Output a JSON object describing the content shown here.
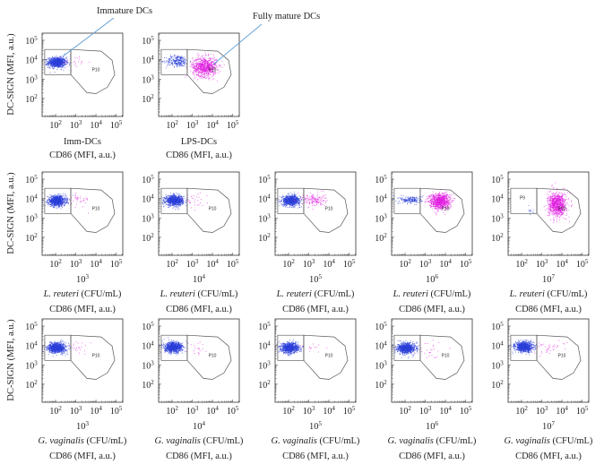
{
  "chart_data": {
    "type": "scatter",
    "scale": "log10",
    "ylabel": "DC-SIGN (MFI, a.u.)",
    "xlabel": "CD86 (MFI, a.u.)",
    "tick_base": "10",
    "x_tick_exponents": [
      "2",
      "3",
      "4",
      "5"
    ],
    "y_tick_exponents": [
      "2",
      "3",
      "4",
      "5"
    ],
    "xlim_log10": [
      1.33,
      5.33
    ],
    "ylim_log10": [
      1.07,
      5.37
    ],
    "colors": {
      "immature": "#2b3fd8",
      "mature": "#e01fe0",
      "gate": "#555555",
      "annotation": "#5b9bd5"
    },
    "gates": {
      "left": [
        [
          1.46,
          4.53
        ],
        [
          2.75,
          4.53
        ],
        [
          2.75,
          3.23
        ],
        [
          1.46,
          3.23
        ]
      ],
      "right": [
        [
          2.75,
          4.53
        ],
        [
          4.26,
          4.44
        ],
        [
          4.8,
          3.97
        ],
        [
          4.93,
          3.23
        ],
        [
          4.57,
          2.58
        ],
        [
          4.0,
          2.25
        ],
        [
          3.55,
          2.3
        ],
        [
          2.75,
          3.23
        ]
      ],
      "right_label": "P10",
      "right_label_pos": [
        3.8,
        3.4
      ],
      "left_label_pos": [
        1.9,
        3.95
      ]
    },
    "annotations": [
      {
        "text": "Immature DCs",
        "panel": 0
      },
      {
        "text": "Fully mature DCs",
        "panel": 1
      }
    ],
    "panels": [
      {
        "condition": "Imm-DCs",
        "pops": [
          {
            "c": "immature",
            "x": 2.05,
            "y": 3.88,
            "sx": 0.22,
            "sy": 0.13,
            "n": 900
          },
          {
            "c": "mature",
            "x": 3.0,
            "y": 3.9,
            "sx": 0.35,
            "sy": 0.2,
            "n": 25
          }
        ]
      },
      {
        "condition": "LPS-DCs",
        "pops": [
          {
            "c": "immature",
            "x": 2.25,
            "y": 3.95,
            "sx": 0.28,
            "sy": 0.15,
            "n": 250
          },
          {
            "c": "mature",
            "x": 3.6,
            "y": 3.65,
            "sx": 0.3,
            "sy": 0.25,
            "n": 800
          }
        ]
      },
      {
        "species": "L. reuteri",
        "units": "(CFU/mL)",
        "conc_exp": "3",
        "pops": [
          {
            "c": "immature",
            "x": 2.05,
            "y": 3.9,
            "sx": 0.22,
            "sy": 0.13,
            "n": 900
          },
          {
            "c": "mature",
            "x": 3.1,
            "y": 3.95,
            "sx": 0.3,
            "sy": 0.2,
            "n": 40
          }
        ]
      },
      {
        "species": "L. reuteri",
        "units": "(CFU/mL)",
        "conc_exp": "4",
        "pops": [
          {
            "c": "immature",
            "x": 2.1,
            "y": 3.92,
            "sx": 0.22,
            "sy": 0.13,
            "n": 900
          },
          {
            "c": "mature",
            "x": 3.1,
            "y": 3.9,
            "sx": 0.3,
            "sy": 0.2,
            "n": 30
          }
        ]
      },
      {
        "species": "L. reuteri",
        "units": "(CFU/mL)",
        "conc_exp": "5",
        "pops": [
          {
            "c": "immature",
            "x": 2.1,
            "y": 3.92,
            "sx": 0.22,
            "sy": 0.13,
            "n": 800
          },
          {
            "c": "mature",
            "x": 3.2,
            "y": 3.95,
            "sx": 0.3,
            "sy": 0.17,
            "n": 150
          }
        ]
      },
      {
        "species": "L. reuteri",
        "units": "(CFU/mL)",
        "conc_exp": "6",
        "pops": [
          {
            "c": "immature",
            "x": 2.3,
            "y": 3.95,
            "sx": 0.28,
            "sy": 0.1,
            "n": 180
          },
          {
            "c": "mature",
            "x": 3.7,
            "y": 3.88,
            "sx": 0.25,
            "sy": 0.2,
            "n": 900
          }
        ]
      },
      {
        "species": "L. reuteri",
        "units": "(CFU/mL)",
        "conc_exp": "7",
        "left_label": "P9",
        "pops": [
          {
            "c": "immature",
            "x": 2.5,
            "y": 3.4,
            "sx": 0.12,
            "sy": 0.1,
            "n": 12
          },
          {
            "c": "mature",
            "x": 3.75,
            "y": 3.7,
            "sx": 0.22,
            "sy": 0.3,
            "n": 900
          }
        ]
      },
      {
        "species": "G. vaginalis",
        "units": "(CFU/mL)",
        "conc_exp": "3",
        "pops": [
          {
            "c": "immature",
            "x": 2.05,
            "y": 3.9,
            "sx": 0.22,
            "sy": 0.13,
            "n": 900
          },
          {
            "c": "mature",
            "x": 3.1,
            "y": 3.9,
            "sx": 0.3,
            "sy": 0.2,
            "n": 20
          }
        ]
      },
      {
        "species": "G. vaginalis",
        "units": "(CFU/mL)",
        "conc_exp": "4",
        "pops": [
          {
            "c": "immature",
            "x": 2.05,
            "y": 3.92,
            "sx": 0.22,
            "sy": 0.13,
            "n": 900
          },
          {
            "c": "mature",
            "x": 3.1,
            "y": 3.9,
            "sx": 0.3,
            "sy": 0.2,
            "n": 20
          }
        ]
      },
      {
        "species": "G. vaginalis",
        "units": "(CFU/mL)",
        "conc_exp": "5",
        "pops": [
          {
            "c": "immature",
            "x": 2.05,
            "y": 3.9,
            "sx": 0.22,
            "sy": 0.13,
            "n": 900
          },
          {
            "c": "mature",
            "x": 3.1,
            "y": 3.9,
            "sx": 0.3,
            "sy": 0.2,
            "n": 15
          }
        ]
      },
      {
        "species": "G. vaginalis",
        "units": "(CFU/mL)",
        "conc_exp": "6",
        "pops": [
          {
            "c": "immature",
            "x": 2.05,
            "y": 3.88,
            "sx": 0.22,
            "sy": 0.13,
            "n": 900
          },
          {
            "c": "mature",
            "x": 3.2,
            "y": 3.7,
            "sx": 0.35,
            "sy": 0.25,
            "n": 25
          }
        ]
      },
      {
        "species": "G. vaginalis",
        "units": "(CFU/mL)",
        "conc_exp": "7",
        "pops": [
          {
            "c": "immature",
            "x": 2.1,
            "y": 3.95,
            "sx": 0.22,
            "sy": 0.13,
            "n": 900
          },
          {
            "c": "mature",
            "x": 3.3,
            "y": 3.9,
            "sx": 0.35,
            "sy": 0.2,
            "n": 40
          }
        ]
      }
    ]
  }
}
